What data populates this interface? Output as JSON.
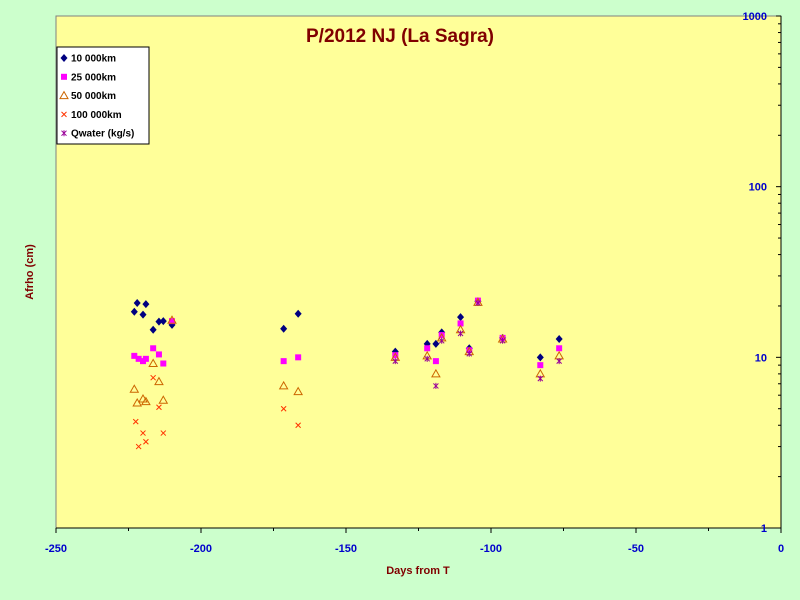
{
  "chart_data": {
    "type": "scatter",
    "title": "P/2012 NJ (La Sagra)",
    "xlabel": "Days from T",
    "ylabel": "Afrho (cm)",
    "xlim": [
      -250,
      0
    ],
    "ylim": [
      1,
      1000
    ],
    "yscale": "log",
    "x_ticks": [
      "-250",
      "-200",
      "-150",
      "-100",
      "-50",
      "0"
    ],
    "y_ticks": [
      "1",
      "10",
      "100",
      "1000"
    ],
    "grid": false,
    "legend_position": "top-left",
    "colors": {
      "plot_bg": "#ffff99",
      "page_bg": "#ccffcc",
      "title": "#800000",
      "ticks": "#0000cc"
    },
    "series": [
      {
        "name": "10 000km",
        "marker": "diamond",
        "color": "#000080",
        "points": [
          [
            -223,
            18.5
          ],
          [
            -222,
            20.8
          ],
          [
            -220,
            17.8
          ],
          [
            -219,
            20.5
          ],
          [
            -216.5,
            14.5
          ],
          [
            -214.5,
            16.2
          ],
          [
            -213,
            16.3
          ],
          [
            -210,
            15.5
          ],
          [
            -171.5,
            14.7
          ],
          [
            -166.5,
            18
          ],
          [
            -133,
            10.8
          ],
          [
            -122,
            12
          ],
          [
            -119,
            12
          ],
          [
            -117,
            14
          ],
          [
            -110.5,
            17.2
          ],
          [
            -107.5,
            11.3
          ],
          [
            -104.5,
            21.3
          ],
          [
            -96,
            13
          ],
          [
            -83,
            10
          ],
          [
            -76.5,
            12.8
          ]
        ]
      },
      {
        "name": "25 000km",
        "marker": "square",
        "color": "#ff00ff",
        "points": [
          [
            -223,
            10.2
          ],
          [
            -221.5,
            9.8
          ],
          [
            -220,
            9.5
          ],
          [
            -219,
            9.8
          ],
          [
            -216.5,
            11.3
          ],
          [
            -214.5,
            10.4
          ],
          [
            -213,
            9.2
          ],
          [
            -210,
            16.3
          ],
          [
            -171.5,
            9.5
          ],
          [
            -166.5,
            10
          ],
          [
            -133,
            10.3
          ],
          [
            -122,
            11.3
          ],
          [
            -119,
            9.5
          ],
          [
            -117,
            13.5
          ],
          [
            -110.5,
            15.8
          ],
          [
            -107.5,
            11
          ],
          [
            -104.5,
            21.5
          ],
          [
            -96,
            13
          ],
          [
            -83,
            9
          ],
          [
            -76.5,
            11.3
          ]
        ]
      },
      {
        "name": "50 000km",
        "marker": "triangle",
        "color": "#cc6600",
        "points": [
          [
            -223,
            6.5
          ],
          [
            -222,
            5.4
          ],
          [
            -220,
            5.7
          ],
          [
            -219,
            5.5
          ],
          [
            -216.5,
            9.2
          ],
          [
            -214.5,
            7.2
          ],
          [
            -213,
            5.6
          ],
          [
            -210,
            16.5
          ],
          [
            -171.5,
            6.8
          ],
          [
            -166.5,
            6.3
          ],
          [
            -133,
            10
          ],
          [
            -122,
            10.2
          ],
          [
            -119,
            8
          ],
          [
            -117,
            13
          ],
          [
            -110.5,
            14.5
          ],
          [
            -107.5,
            10.8
          ],
          [
            -104.5,
            21
          ],
          [
            -96,
            12.8
          ],
          [
            -83,
            8
          ],
          [
            -76.5,
            10.2
          ]
        ]
      },
      {
        "name": "100 000km",
        "marker": "x",
        "color": "#ff3300",
        "points": [
          [
            -222.5,
            4.2
          ],
          [
            -221.5,
            3
          ],
          [
            -220,
            3.6
          ],
          [
            -219,
            3.2
          ],
          [
            -216.5,
            7.6
          ],
          [
            -214.5,
            5.1
          ],
          [
            -213,
            3.6
          ],
          [
            -171.5,
            5
          ],
          [
            -166.5,
            4
          ]
        ]
      },
      {
        "name": "Qwater (kg/s)",
        "marker": "star",
        "color": "#990099",
        "points": [
          [
            -133,
            9.5
          ],
          [
            -122,
            9.8
          ],
          [
            -119,
            6.8
          ],
          [
            -117,
            12.5
          ],
          [
            -110.5,
            13.8
          ],
          [
            -107.5,
            10.5
          ],
          [
            -104.5,
            20.8
          ],
          [
            -96,
            12.5
          ],
          [
            -83,
            7.5
          ],
          [
            -76.5,
            9.5
          ]
        ]
      }
    ]
  }
}
